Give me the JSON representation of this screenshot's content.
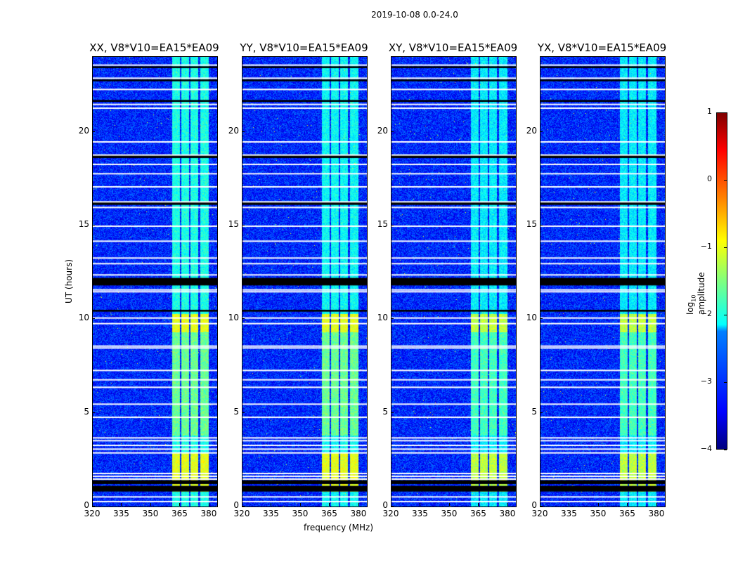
{
  "suptitle": "2019-10-08 0.0-24.0",
  "chart_data": {
    "type": "heatmap",
    "title": "2019-10-08 0.0-24.0",
    "xlabel": "frequency (MHz)",
    "ylabel": "UT (hours)",
    "xlim": [
      320,
      384
    ],
    "ylim": [
      0,
      24
    ],
    "xticks": [
      "320",
      "335",
      "350",
      "365",
      "380"
    ],
    "xtick_values": [
      320,
      335,
      350,
      365,
      380
    ],
    "yticks": [
      "0",
      "5",
      "10",
      "15",
      "20"
    ],
    "ytick_values": [
      0,
      5,
      10,
      15,
      20
    ],
    "panels": [
      {
        "title": "XX, V8*V10=EA15*EA09",
        "rfi_level": -1.7
      },
      {
        "title": "YY, V8*V10=EA15*EA09",
        "rfi_level": -1.8
      },
      {
        "title": "XY, V8*V10=EA15*EA09",
        "rfi_level": -1.9
      },
      {
        "title": "YX, V8*V10=EA15*EA09",
        "rfi_level": -1.9
      }
    ],
    "background_level": -3.2,
    "rfi_subbands_mhz": [
      [
        360.5,
        364.8
      ],
      [
        365.3,
        369.2
      ],
      [
        370.2,
        374.2
      ],
      [
        375.2,
        379.6
      ]
    ],
    "strong_rfi_periods_hours": [
      [
        0.8,
        2.9,
        -1.0
      ],
      [
        3.8,
        9.3,
        -1.6
      ],
      [
        9.3,
        10.3,
        -1.0
      ]
    ],
    "flagged_hours_white": [
      0.3,
      0.55,
      1.5,
      1.65,
      1.8,
      2.9,
      3.1,
      3.3,
      3.55,
      3.7,
      4.8,
      5.5,
      6.4,
      6.8,
      7.3,
      8.5,
      8.6,
      9.8,
      10.1,
      11.5,
      11.6,
      12.4,
      13.0,
      13.3,
      14.2,
      15.0,
      16.0,
      16.3,
      17.1,
      17.8,
      18.3,
      18.8,
      19.5,
      21.3,
      21.5,
      22.3,
      22.9,
      23.6
    ],
    "flagged_hours_black": [
      [
        0.8,
        1.1
      ],
      [
        1.2,
        1.4
      ],
      [
        10.4,
        10.5
      ],
      [
        11.8,
        12.2
      ],
      [
        16.1,
        16.25
      ],
      [
        18.6,
        18.75
      ],
      [
        21.6,
        21.7
      ],
      [
        22.7,
        22.8
      ],
      [
        23.4,
        23.5
      ]
    ],
    "colorbar": {
      "label": "log10 amplitude",
      "range": [
        -4,
        1
      ],
      "ticks": [
        "1",
        "0",
        "−1",
        "−2",
        "−3",
        "−4"
      ],
      "tick_values": [
        1,
        0,
        -1,
        -2,
        -3,
        -4
      ],
      "colormap": "jet"
    }
  }
}
